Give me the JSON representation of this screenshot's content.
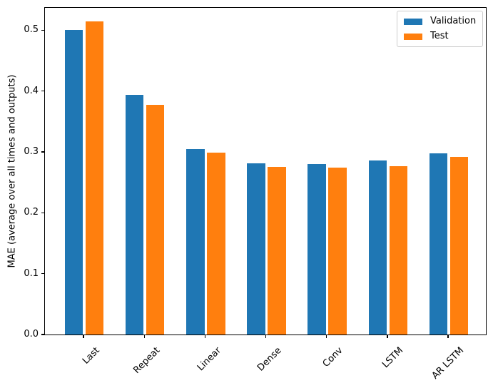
{
  "figure": {
    "background": "#ffffff",
    "text_color": "#000000",
    "spine_color": "#000000",
    "legend_border_color": "#cccccc"
  },
  "chart_data": {
    "type": "bar",
    "title": "",
    "xlabel": "",
    "ylabel": "MAE (average over all times and outputs)",
    "categories": [
      "Last",
      "Repeat",
      "Linear",
      "Dense",
      "Conv",
      "LSTM",
      "AR LSTM"
    ],
    "series": [
      {
        "name": "Validation",
        "color": "#1f77b4",
        "values": [
          0.501,
          0.394,
          0.305,
          0.281,
          0.28,
          0.286,
          0.298
        ]
      },
      {
        "name": "Test",
        "color": "#ff7f0e",
        "values": [
          0.515,
          0.377,
          0.299,
          0.276,
          0.274,
          0.277,
          0.292
        ]
      }
    ],
    "ylim": [
      0,
      0.538
    ],
    "yticks": [
      0.0,
      0.1,
      0.2,
      0.3,
      0.4,
      0.5
    ],
    "ytick_labels": [
      "0.0",
      "0.1",
      "0.2",
      "0.3",
      "0.4",
      "0.5"
    ],
    "xtick_rotation_deg": 45,
    "grid": false,
    "legend": {
      "position": "upper right",
      "entries": [
        "Validation",
        "Test"
      ]
    }
  }
}
